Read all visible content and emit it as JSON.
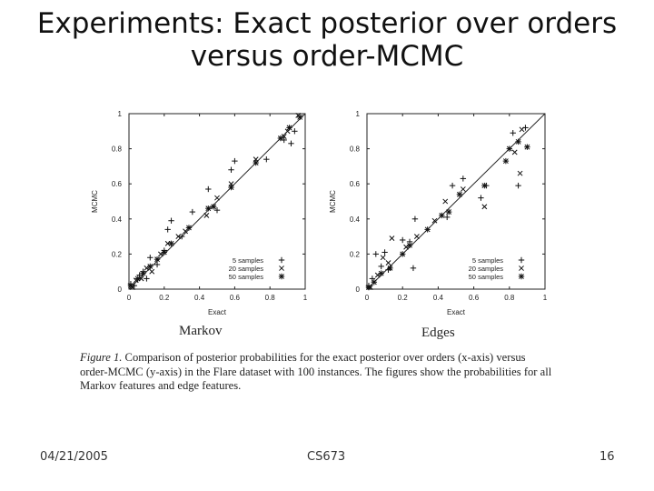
{
  "slide": {
    "title_line1": "Experiments: Exact posterior over orders",
    "title_line2": "versus order-MCMC"
  },
  "footer": {
    "date": "04/21/2005",
    "course": "CS673",
    "page": "16"
  },
  "figure": {
    "caption_label": "Figure 1.",
    "caption_text": " Comparison of posterior probabilities for the exact posterior over orders (x-axis) versus order-MCMC (y-axis) in the Flare dataset with 100 instances. The figures show the probabilities for all Markov features and edge features."
  },
  "chart_data": [
    {
      "type": "scatter",
      "title": "Markov",
      "xlabel": "Exact",
      "ylabel": "MCMC",
      "xlim": [
        0,
        1
      ],
      "ylim": [
        0,
        1
      ],
      "xticks": [
        "0",
        "0.2",
        "0.4",
        "0.6",
        "0.8",
        "1"
      ],
      "yticks": [
        "0",
        "0.2",
        "0.4",
        "0.6",
        "0.8",
        "1"
      ],
      "reference_line": "y = x",
      "legend_position": "bottom-right",
      "series": [
        {
          "name": "5 samples",
          "marker": "+",
          "points": [
            [
              0.01,
              0.03
            ],
            [
              0.03,
              0.02
            ],
            [
              0.06,
              0.08
            ],
            [
              0.08,
              0.1
            ],
            [
              0.1,
              0.06
            ],
            [
              0.12,
              0.18
            ],
            [
              0.16,
              0.14
            ],
            [
              0.2,
              0.22
            ],
            [
              0.22,
              0.34
            ],
            [
              0.24,
              0.39
            ],
            [
              0.3,
              0.3
            ],
            [
              0.36,
              0.44
            ],
            [
              0.45,
              0.57
            ],
            [
              0.5,
              0.45
            ],
            [
              0.58,
              0.68
            ],
            [
              0.6,
              0.73
            ],
            [
              0.92,
              0.83
            ],
            [
              0.94,
              0.9
            ],
            [
              0.88,
              0.85
            ],
            [
              0.78,
              0.74
            ]
          ]
        },
        {
          "name": "20 samples",
          "marker": "x",
          "points": [
            [
              0.02,
              0.01
            ],
            [
              0.04,
              0.05
            ],
            [
              0.07,
              0.06
            ],
            [
              0.1,
              0.12
            ],
            [
              0.13,
              0.1
            ],
            [
              0.18,
              0.2
            ],
            [
              0.22,
              0.26
            ],
            [
              0.28,
              0.3
            ],
            [
              0.32,
              0.33
            ],
            [
              0.44,
              0.42
            ],
            [
              0.5,
              0.52
            ],
            [
              0.58,
              0.6
            ],
            [
              0.72,
              0.74
            ],
            [
              0.88,
              0.87
            ],
            [
              0.9,
              0.9
            ],
            [
              0.96,
              0.99
            ]
          ]
        },
        {
          "name": "50 samples",
          "marker": "*",
          "points": [
            [
              0.01,
              0.02
            ],
            [
              0.05,
              0.06
            ],
            [
              0.08,
              0.09
            ],
            [
              0.12,
              0.13
            ],
            [
              0.16,
              0.17
            ],
            [
              0.2,
              0.21
            ],
            [
              0.24,
              0.26
            ],
            [
              0.34,
              0.35
            ],
            [
              0.45,
              0.46
            ],
            [
              0.48,
              0.47
            ],
            [
              0.58,
              0.58
            ],
            [
              0.72,
              0.72
            ],
            [
              0.86,
              0.86
            ],
            [
              0.91,
              0.92
            ],
            [
              0.97,
              0.98
            ]
          ]
        }
      ]
    },
    {
      "type": "scatter",
      "title": "Edges",
      "xlabel": "Exact",
      "ylabel": "MCMC",
      "xlim": [
        0,
        1
      ],
      "ylim": [
        0,
        1
      ],
      "xticks": [
        "0",
        "0.2",
        "0.4",
        "0.6",
        "0.8",
        "1"
      ],
      "yticks": [
        "0",
        "0.2",
        "0.4",
        "0.6",
        "0.8",
        "1"
      ],
      "reference_line": "y = x",
      "legend_position": "bottom-right",
      "series": [
        {
          "name": "5 samples",
          "marker": "+",
          "points": [
            [
              0.01,
              0.02
            ],
            [
              0.03,
              0.06
            ],
            [
              0.05,
              0.2
            ],
            [
              0.08,
              0.13
            ],
            [
              0.1,
              0.21
            ],
            [
              0.12,
              0.11
            ],
            [
              0.2,
              0.28
            ],
            [
              0.26,
              0.12
            ],
            [
              0.24,
              0.27
            ],
            [
              0.27,
              0.4
            ],
            [
              0.45,
              0.41
            ],
            [
              0.48,
              0.59
            ],
            [
              0.54,
              0.63
            ],
            [
              0.64,
              0.52
            ],
            [
              0.67,
              0.59
            ],
            [
              0.82,
              0.89
            ],
            [
              0.85,
              0.59
            ],
            [
              0.89,
              0.92
            ]
          ]
        },
        {
          "name": "20 samples",
          "marker": "x",
          "points": [
            [
              0.02,
              0.01
            ],
            [
              0.06,
              0.08
            ],
            [
              0.09,
              0.18
            ],
            [
              0.12,
              0.15
            ],
            [
              0.14,
              0.29
            ],
            [
              0.22,
              0.24
            ],
            [
              0.28,
              0.3
            ],
            [
              0.38,
              0.39
            ],
            [
              0.44,
              0.5
            ],
            [
              0.54,
              0.57
            ],
            [
              0.66,
              0.47
            ],
            [
              0.86,
              0.66
            ],
            [
              0.83,
              0.78
            ],
            [
              0.87,
              0.91
            ]
          ]
        },
        {
          "name": "50 samples",
          "marker": "*",
          "points": [
            [
              0.01,
              0.01
            ],
            [
              0.04,
              0.04
            ],
            [
              0.08,
              0.09
            ],
            [
              0.13,
              0.12
            ],
            [
              0.2,
              0.2
            ],
            [
              0.24,
              0.25
            ],
            [
              0.34,
              0.34
            ],
            [
              0.42,
              0.42
            ],
            [
              0.46,
              0.44
            ],
            [
              0.52,
              0.54
            ],
            [
              0.66,
              0.59
            ],
            [
              0.78,
              0.73
            ],
            [
              0.8,
              0.8
            ],
            [
              0.85,
              0.84
            ],
            [
              0.9,
              0.81
            ]
          ]
        }
      ]
    }
  ]
}
